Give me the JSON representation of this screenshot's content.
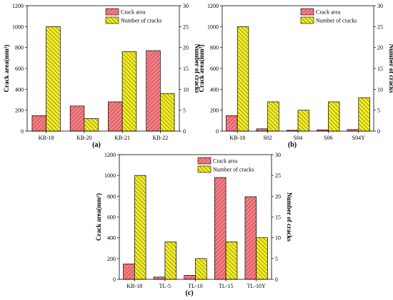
{
  "colors": {
    "crack_area_fill": "#f07f86",
    "crack_area_hatch": "#c0262f",
    "cracks_fill": "#f2ed28",
    "cracks_hatch": "#5a5500"
  },
  "chart_data": [
    {
      "type": "bar",
      "caption": "(a)",
      "categories": [
        "KB-18",
        "KB-20",
        "KB-21",
        "KB-22"
      ],
      "series": [
        {
          "name": "Crack area",
          "axis": "left",
          "values": [
            148,
            240,
            280,
            770
          ]
        },
        {
          "name": "Number of cracks",
          "axis": "right",
          "values": [
            25,
            3,
            19,
            9
          ]
        }
      ],
      "ylabel": "Crack area(mm²)",
      "y2label": "Number of cracks",
      "ylim": [
        0,
        1200
      ],
      "y2lim": [
        0,
        30
      ],
      "yticks": [
        0,
        200,
        400,
        600,
        800,
        1000,
        1200
      ],
      "y2ticks": [
        0,
        5,
        10,
        15,
        20,
        25,
        30
      ],
      "legend": "top-right"
    },
    {
      "type": "bar",
      "caption": "(b)",
      "categories": [
        "KB-18",
        "S02",
        "S04",
        "S06",
        "S04Y"
      ],
      "series": [
        {
          "name": "Crack area",
          "axis": "left",
          "values": [
            148,
            22,
            8,
            12,
            15
          ]
        },
        {
          "name": "Number of cracks",
          "axis": "right",
          "values": [
            25,
            7,
            5,
            7,
            8
          ]
        }
      ],
      "ylabel": "Crack area(mm²)",
      "y2label": "Number of cracks",
      "ylim": [
        0,
        1200
      ],
      "y2lim": [
        0,
        30
      ],
      "yticks": [
        0,
        200,
        400,
        600,
        800,
        1000,
        1200
      ],
      "y2ticks": [
        0,
        5,
        10,
        15,
        20,
        25,
        30
      ],
      "legend": "top-right"
    },
    {
      "type": "bar",
      "caption": "(c)",
      "categories": [
        "KB-18",
        "TL-5",
        "TL-10",
        "TL-15",
        "TL-10Y"
      ],
      "series": [
        {
          "name": "Crack area",
          "axis": "left",
          "values": [
            148,
            22,
            38,
            980,
            795
          ]
        },
        {
          "name": "Number of cracks",
          "axis": "right",
          "values": [
            25,
            9,
            5,
            9,
            10
          ]
        }
      ],
      "ylabel": "Crack area(mm²)",
      "y2label": "Number of cracks",
      "ylim": [
        0,
        1200
      ],
      "y2lim": [
        0,
        30
      ],
      "yticks": [
        0,
        200,
        400,
        600,
        800,
        1000,
        1200
      ],
      "y2ticks": [
        0,
        5,
        10,
        15,
        20,
        25,
        30
      ],
      "legend": "top-right"
    }
  ]
}
